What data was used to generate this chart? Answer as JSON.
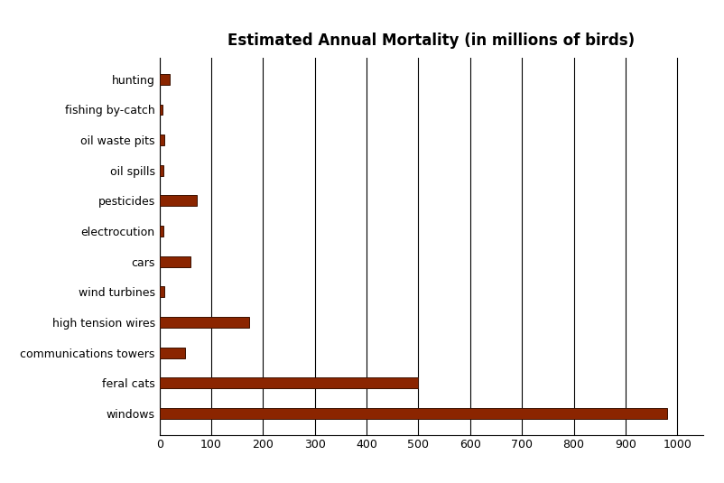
{
  "title": "Estimated Annual Mortality (in millions of birds)",
  "categories": [
    "windows",
    "feral cats",
    "communications towers",
    "high tension wires",
    "wind turbines",
    "cars",
    "electrocution",
    "pesticides",
    "oil spills",
    "oil waste pits",
    "fishing by-catch",
    "hunting"
  ],
  "values": [
    980,
    500,
    50,
    174,
    10,
    60,
    8,
    72,
    7,
    9,
    5,
    20
  ],
  "bar_color": "#8B2500",
  "bar_edge_color": "#3B1000",
  "xlim": [
    0,
    1050
  ],
  "xticks": [
    0,
    100,
    200,
    300,
    400,
    500,
    600,
    700,
    800,
    900,
    1000
  ],
  "background_color": "#ffffff",
  "grid_color": "#000000",
  "title_fontsize": 12,
  "label_fontsize": 9,
  "tick_fontsize": 9,
  "bar_height": 0.35
}
